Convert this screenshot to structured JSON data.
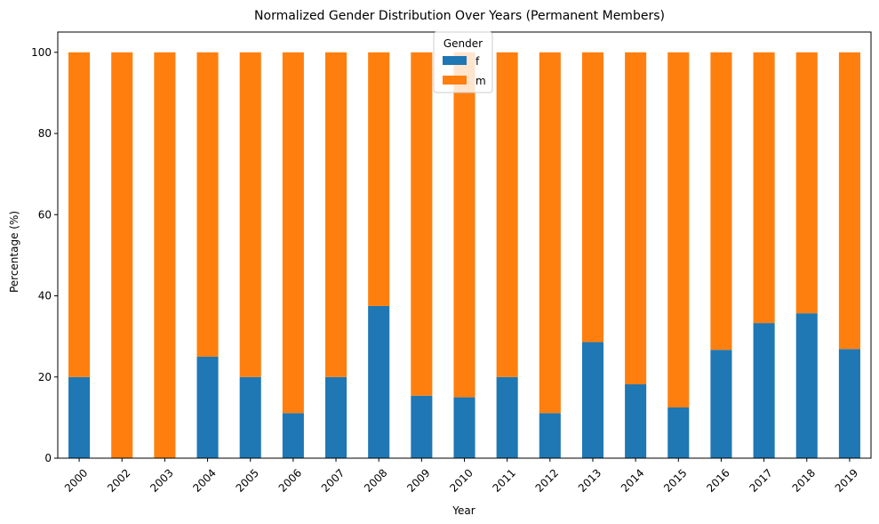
{
  "chart_data": {
    "type": "bar",
    "stacked": true,
    "title": "Normalized Gender Distribution Over Years (Permanent Members)",
    "xlabel": "Year",
    "ylabel": "Percentage (%)",
    "categories": [
      "2000",
      "2002",
      "2003",
      "2004",
      "2005",
      "2006",
      "2007",
      "2008",
      "2009",
      "2010",
      "2011",
      "2012",
      "2013",
      "2014",
      "2015",
      "2016",
      "2017",
      "2018",
      "2019"
    ],
    "ylim": [
      0,
      105
    ],
    "yticks": [
      0,
      20,
      40,
      60,
      80,
      100
    ],
    "series": [
      {
        "name": "f",
        "color": "#1f77b4",
        "values": [
          20.0,
          0.0,
          0.0,
          25.0,
          20.0,
          11.1,
          20.0,
          37.5,
          15.4,
          15.0,
          20.0,
          11.1,
          28.6,
          18.2,
          12.5,
          26.7,
          33.3,
          35.7,
          26.9
        ]
      },
      {
        "name": "m",
        "color": "#ff7f0e",
        "values": [
          80.0,
          100.0,
          100.0,
          75.0,
          80.0,
          88.9,
          80.0,
          62.5,
          84.6,
          85.0,
          80.0,
          88.9,
          71.4,
          81.8,
          87.5,
          73.3,
          66.7,
          64.3,
          73.1
        ]
      }
    ],
    "legend": {
      "title": "Gender",
      "position": "top-center"
    },
    "grid": false
  }
}
